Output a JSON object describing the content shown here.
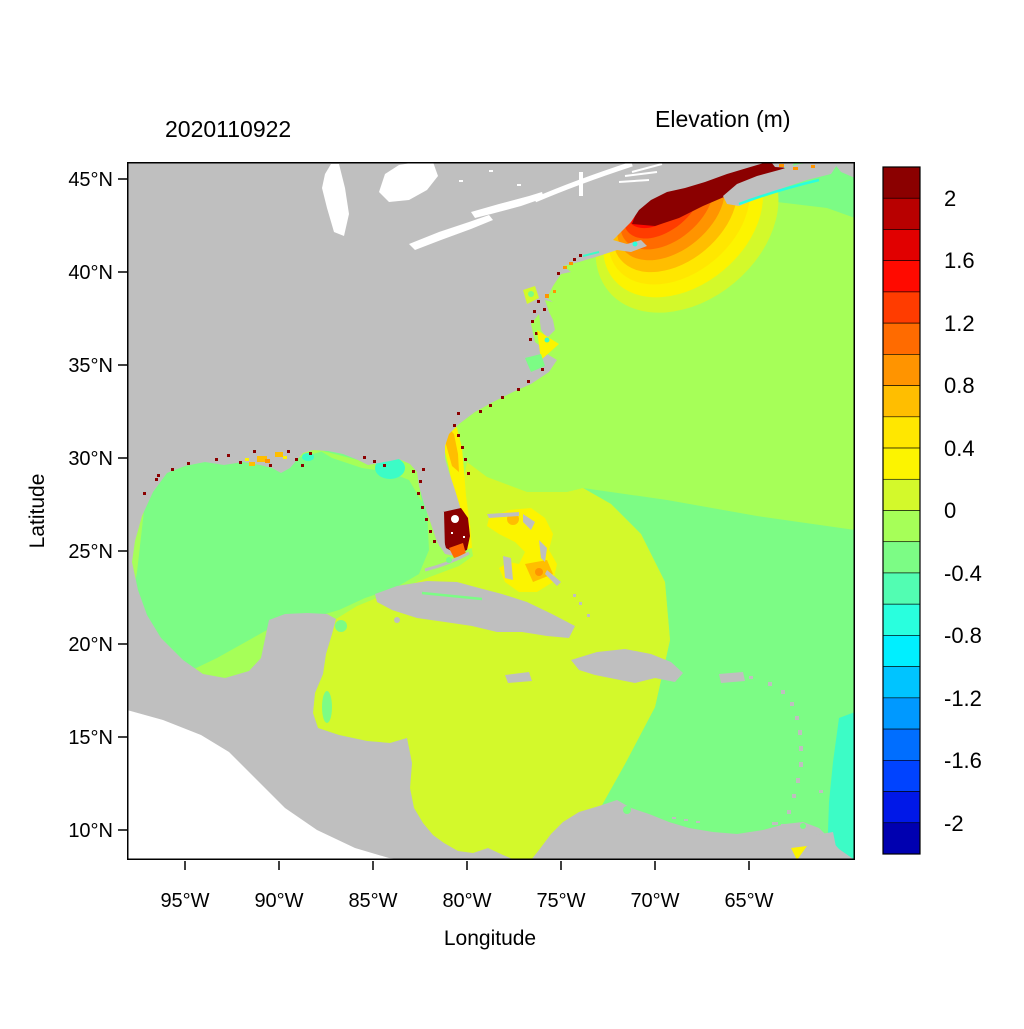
{
  "titles": {
    "date": "2020110922",
    "colorbar": "Elevation (m)"
  },
  "axes": {
    "x_label": "Longitude",
    "y_label": "Latitude",
    "x_ticks": [
      "95°W",
      "90°W",
      "85°W",
      "80°W",
      "75°W",
      "70°W",
      "65°W"
    ],
    "y_ticks": [
      "45°N",
      "40°N",
      "35°N",
      "30°N",
      "25°N",
      "20°N",
      "15°N",
      "10°N"
    ]
  },
  "colorbar": {
    "tick_labels": [
      "2",
      "1.6",
      "1.2",
      "0.8",
      "0.4",
      "0",
      "-0.4",
      "-0.8",
      "-1.2",
      "-1.6",
      "-2"
    ],
    "cell_colors": [
      "#8B0000",
      "#B80000",
      "#E10000",
      "#FF0A00",
      "#FF3C00",
      "#FF6B00",
      "#FF9400",
      "#FFBE00",
      "#FFE700",
      "#FCF400",
      "#D3F92B",
      "#A6FF58",
      "#7CFC85",
      "#52FDB2",
      "#29FFDE",
      "#00EFFF",
      "#00C4FF",
      "#0099FF",
      "#006EFF",
      "#0043FF",
      "#0018E8",
      "#0000B0"
    ]
  },
  "map": {
    "colors": {
      "land": "#BFBFBF",
      "outside": "#FFFFFF",
      "atlantic": "#A6FF58",
      "gulf_green": "#7CFC85",
      "caribbean": "#D3F92B",
      "turquoise": "#3CFCC6",
      "cyan": "#29FFDE",
      "yellow": "#FCF400",
      "ring_yellow2": "#FFE700",
      "amber": "#FFBE00",
      "orange": "#FF9400",
      "deep_orange": "#FF6B00",
      "red_orange": "#FF3C00",
      "red": "#FF0A00",
      "dark_red2": "#E10000",
      "dark_red1": "#B80000",
      "dark_red": "#8B0000",
      "frame": "#000000"
    }
  },
  "chart_data": {
    "type": "heatmap",
    "title": "2020110922",
    "colorbar_title": "Elevation (m)",
    "xlabel": "Longitude",
    "ylabel": "Latitude",
    "x_ticks": [
      "95°W",
      "90°W",
      "85°W",
      "80°W",
      "75°W",
      "70°W",
      "65°W"
    ],
    "y_ticks": [
      "45°N",
      "40°N",
      "35°N",
      "30°N",
      "25°N",
      "20°N",
      "15°N",
      "10°N"
    ],
    "xlim_deg_west": [
      98.1,
      59.4
    ],
    "ylim_deg_north": [
      8.4,
      45.9
    ],
    "color_scale": {
      "min": -2.2,
      "max": 2.2,
      "step": 0.2,
      "n_cells": 22,
      "palette": "jet",
      "tick_values": [
        2,
        1.6,
        1.2,
        0.8,
        0.4,
        0,
        -0.4,
        -0.8,
        -1.2,
        -1.6,
        -2
      ]
    },
    "regions": [
      {
        "name": "Gulf of Maine / Bay of Fundy",
        "approx_elevation_m": 2.2,
        "note": "dark-red maximum with concentric rings down to 0.4"
      },
      {
        "name": "Open Atlantic",
        "approx_elevation_m": 0.1
      },
      {
        "name": "Northeast Atlantic band (off Nova Scotia)",
        "approx_elevation_m": -0.1
      },
      {
        "name": "Gulf of Mexico interior",
        "approx_elevation_m": -0.1
      },
      {
        "name": "Caribbean Sea / SW Atlantic",
        "approx_elevation_m": 0.3
      },
      {
        "name": "Bahamas banks",
        "approx_elevation_m": 0.6,
        "note": "yellow with orange patches up to 1.0"
      },
      {
        "name": "Georgia Bight coastal band",
        "approx_elevation_m": 0.5
      },
      {
        "name": "South Florida / Everglades",
        "approx_elevation_m": 2.2,
        "note": "dark-red coastal flooding blob"
      },
      {
        "name": "Apalachee Bay patch",
        "approx_elevation_m": -0.3
      },
      {
        "name": "Eastern edge near Lesser Antilles",
        "approx_elevation_m": -0.3
      },
      {
        "name": "Coastal speckles (LA, FL, GA, Chesapeake)",
        "approx_elevation_m": 2.0
      }
    ]
  }
}
